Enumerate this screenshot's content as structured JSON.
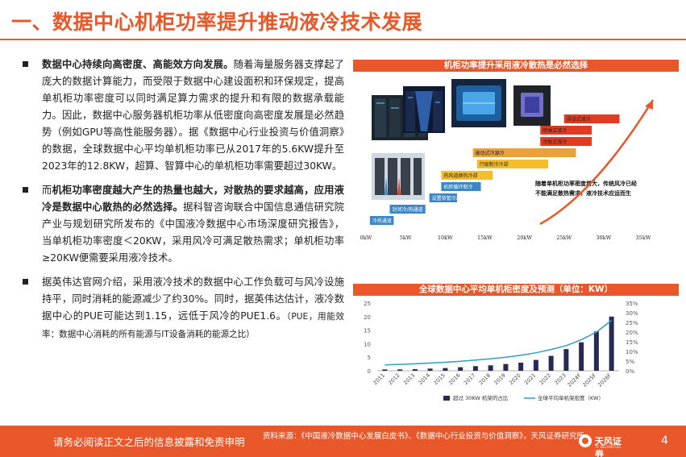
{
  "slide": {
    "title": "一、数据中心机柜功率提升推动液冷技术发展",
    "page_number": "4"
  },
  "bullets": [
    {
      "bold": "数据中心持续向高密度、高能效方向发展。",
      "text": "随着海量服务器支撑起了庞大的数据计算能力，而受限于数据中心建设面积和环保规定，提高单机柜功率密度可以同时满足算力需求的提升和有限的数据承载能力。因此，数据中心服务器机柜功率从低密度向高密度发展是必然趋势（例如GPU等高性能服务器）。据《数据中心行业投资与价值洞察》的数据，全球数据中心平均单机柜功率已从2017年的5.6KW提升至2023年的12.8KW，超算、智算中心的单机柜功率需要超过30KW。"
    },
    {
      "pre": "而",
      "bold": "机柜功率密度越大产生的热量也越大，对散热的要求越高，应用液冷是数据中心散热的必然选择。",
      "text": "据科智咨询联合中国信息通信研究院产业与规划研究所发布的《中国液冷数据中心市场深度研究报告》，当单机柜功率密度＜20KW，采用风冷可满足散热需求；单机柜功率≥20KW便需要采用液冷技术。"
    },
    {
      "text": "据英伟达官网介绍，采用液冷技术的数据中心工作负载可与风冷设施持平，同时消耗的能源减少了约30%。同时，据英伟达估计，液冷数据中心的PUE可能达到1.15，远低于风冷的PUE1.6。",
      "note": "（PUE，用能效率：数据中心消耗的所有能源与IT设备消耗的能源之比）"
    }
  ],
  "figure1": {
    "title": "机柜功率提升采用液冷散热是必然选择",
    "x_ticks": [
      "0kW",
      "5kW",
      "10kW",
      "15kW",
      "20kW",
      "25kW",
      "30kW",
      "35kW"
    ],
    "bars": [
      {
        "label": "冷热通道",
        "start": 0.5,
        "end": 3.5
      },
      {
        "label": "封闭冷/热通道",
        "start": 3.0,
        "end": 7.5
      },
      {
        "label": "设置背管冷却",
        "start": 8.0,
        "end": 11.5
      },
      {
        "label": "机柜循环制冷",
        "start": 9.5,
        "end": 14.5
      },
      {
        "label": "热风道换热冷却",
        "start": 9.5,
        "end": 16.0
      },
      {
        "label": "行级制冷冷却",
        "start": 14.0,
        "end": 23.0
      },
      {
        "label": "被动式冷源冷",
        "start": 13.5,
        "end": 26.5
      },
      {
        "label": "冷板式液冷",
        "start": 22.0,
        "end": 28.5
      },
      {
        "label": "喷淋式液冷",
        "start": 22.0,
        "end": 28.5
      },
      {
        "label": "浸没式液冷",
        "start": 25.0,
        "end": 32.0
      }
    ],
    "annotation": "随着单机柜功率密度增大，传统风冷已经不能满足散热需求，液冷技术应运而生",
    "colors": {
      "orange": "#e8582a",
      "yellow": "#f3bd2e",
      "amber": "#e9a23b",
      "red": "#e23b22",
      "blue": "#3b86c6"
    }
  },
  "chart_data": {
    "type": "bar",
    "title": "全球数据中心平均单机柜密度及预测（单位：KW）",
    "categories": [
      "2011",
      "2012",
      "2013",
      "2014",
      "2015",
      "2016",
      "2017",
      "2018",
      "2019",
      "2020",
      "2021",
      "2022",
      "2023",
      "2024F",
      "2025F",
      "2026F"
    ],
    "series": [
      {
        "name": "超过 30KW 机架的占比",
        "type": "bar",
        "axis": "left",
        "values": [
          0.5,
          0.5,
          0.6,
          0.8,
          1.0,
          1.3,
          1.7,
          2.0,
          2.5,
          3.0,
          4.0,
          5.5,
          8.0,
          10.5,
          14.5,
          20.0
        ],
        "color": "#262a55"
      },
      {
        "name": "全球平均单机架密度（KW）",
        "type": "line",
        "axis": "right",
        "values": [
          0.03,
          0.033,
          0.036,
          0.04,
          0.044,
          0.049,
          0.055,
          0.062,
          0.07,
          0.08,
          0.093,
          0.11,
          0.13,
          0.16,
          0.2,
          0.26
        ],
        "color": "#2f9fbf"
      }
    ],
    "y_left_ticks": [
      "0",
      "5",
      "10",
      "15",
      "20",
      "25"
    ],
    "y_right_ticks": [
      "0%",
      "5%",
      "10%",
      "15%",
      "20%",
      "25%",
      "30%",
      "35%"
    ],
    "ylim_left": [
      0,
      25
    ],
    "ylim_right": [
      0,
      0.35
    ],
    "legend": "bottom",
    "grid": false
  },
  "footer": {
    "disclaimer": "请务必阅读正文之后的信息披露和免责申明",
    "source": "资料来源：《中国液冷数据中心发展白皮书》、《数据中心行业投资与价值洞察》，天风证券研究所",
    "logo_text": "天风证券",
    "logo_sub": "TF SECURITIES"
  }
}
